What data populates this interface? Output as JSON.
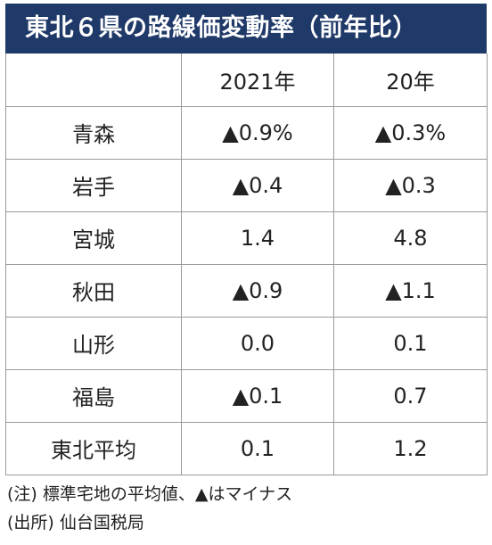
{
  "title": "東北６県の路線価変動率（前年比）",
  "table": {
    "headers": [
      "",
      "2021年",
      "20年"
    ],
    "rows": [
      {
        "region": "青森",
        "y2021": "▲0.9%",
        "y2020": "▲0.3%"
      },
      {
        "region": "岩手",
        "y2021": "▲0.4",
        "y2020": "▲0.3"
      },
      {
        "region": "宮城",
        "y2021": "1.4",
        "y2020": "4.8"
      },
      {
        "region": "秋田",
        "y2021": "▲0.9",
        "y2020": "▲1.1"
      },
      {
        "region": "山形",
        "y2021": "0.0",
        "y2020": "0.1"
      },
      {
        "region": "福島",
        "y2021": "▲0.1",
        "y2020": "0.7"
      },
      {
        "region": "東北平均",
        "y2021": "0.1",
        "y2020": "1.2"
      }
    ]
  },
  "notes": {
    "note": "(注) 標準宅地の平均値、▲はマイナス",
    "source": "(出所) 仙台国税局"
  },
  "colors": {
    "title_background": "#1f3968",
    "title_text": "#ffffff",
    "border": "#9a9a9a"
  }
}
